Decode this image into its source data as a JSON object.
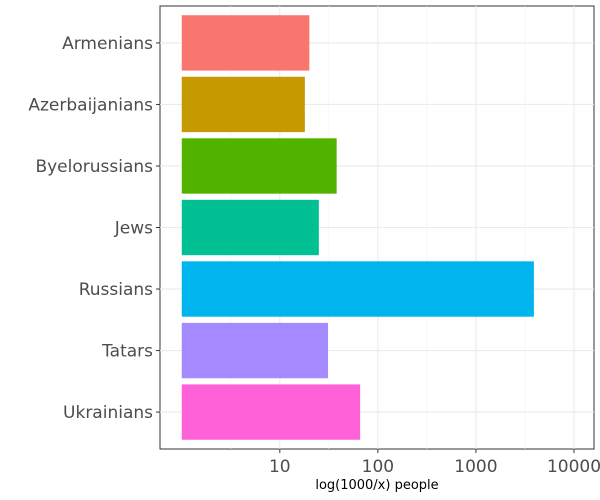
{
  "chart_data": {
    "type": "bar",
    "orientation": "horizontal",
    "x_scale": "log10",
    "xlabel": "log(1000/x) people",
    "ylabel": "",
    "xlim": [
      1,
      10000
    ],
    "xticks": [
      {
        "value": 10,
        "label": "10"
      },
      {
        "value": 100,
        "label": "100"
      },
      {
        "value": 1000,
        "label": "1000"
      },
      {
        "value": 10000,
        "label": "10000"
      }
    ],
    "grid": true,
    "legend": "none",
    "categories": [
      "Ukrainians",
      "Tatars",
      "Russians",
      "Jews",
      "Byelorussians",
      "Azerbaijanians",
      "Armenians"
    ],
    "values": [
      66,
      31,
      3900,
      25,
      38,
      18,
      20
    ],
    "colors": [
      "#FF61D8",
      "#A58AFF",
      "#00B5EE",
      "#00C094",
      "#53B400",
      "#C49A00",
      "#F8766D"
    ]
  }
}
